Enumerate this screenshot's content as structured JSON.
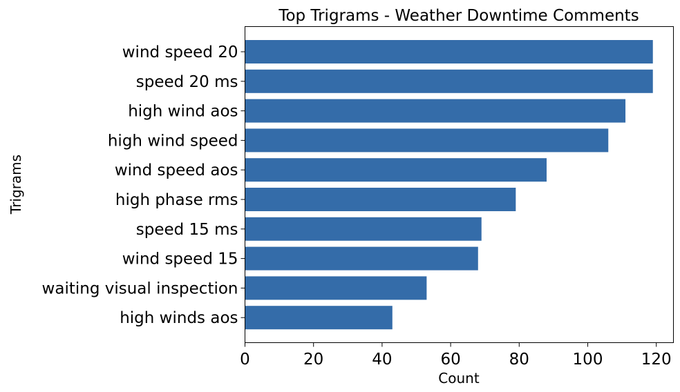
{
  "chart_data": {
    "type": "bar",
    "orientation": "horizontal",
    "title": "Top Trigrams - Weather Downtime Comments",
    "xlabel": "Count",
    "ylabel": "Trigrams",
    "categories": [
      "wind speed 20",
      "speed 20 ms",
      "high wind aos",
      "high wind speed",
      "wind speed aos",
      "high phase rms",
      "speed 15 ms",
      "wind speed 15",
      "waiting visual inspection",
      "high winds aos"
    ],
    "values": [
      119,
      119,
      111,
      106,
      88,
      79,
      69,
      68,
      53,
      43
    ],
    "xlim": [
      0,
      125
    ],
    "xticks": [
      "0",
      "20",
      "40",
      "60",
      "80",
      "100",
      "120"
    ],
    "bar_color": "#346ca9",
    "grid": false,
    "legend": "none"
  }
}
